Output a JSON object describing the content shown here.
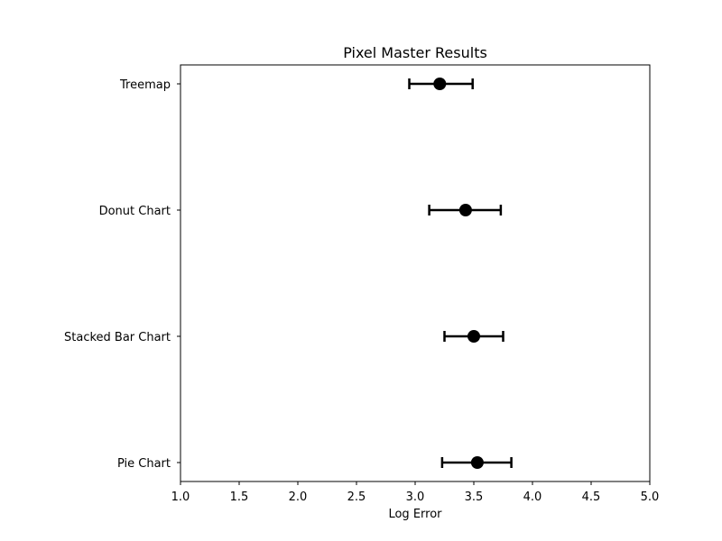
{
  "chart_data": {
    "type": "scatter",
    "title": "Pixel Master Results",
    "xlabel": "Log Error",
    "ylabel": "",
    "xlim": [
      1.0,
      5.0
    ],
    "x_ticks": [
      "1.0",
      "1.5",
      "2.0",
      "2.5",
      "3.0",
      "3.5",
      "4.0",
      "4.5",
      "5.0"
    ],
    "grid": false,
    "legend": "none",
    "categories": [
      "Pie Chart",
      "Stacked Bar Chart",
      "Donut Chart",
      "Treemap"
    ],
    "points": [
      {
        "category": "Pie Chart",
        "value": 3.53,
        "err_low": 3.23,
        "err_high": 3.82
      },
      {
        "category": "Stacked Bar Chart",
        "value": 3.5,
        "err_low": 3.25,
        "err_high": 3.75
      },
      {
        "category": "Donut Chart",
        "value": 3.43,
        "err_low": 3.12,
        "err_high": 3.73
      },
      {
        "category": "Treemap",
        "value": 3.21,
        "err_low": 2.95,
        "err_high": 3.49
      }
    ],
    "marker_color": "#000000",
    "errorbar_color": "#000000"
  }
}
